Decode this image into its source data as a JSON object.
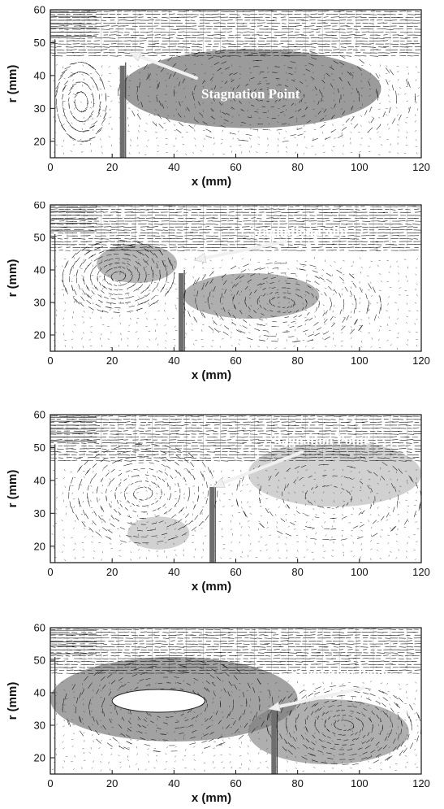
{
  "chart_data": [
    {
      "type": "vector-field",
      "xlabel": "x (mm)",
      "ylabel": "r (mm)",
      "xlim": [
        0,
        120
      ],
      "ylim": [
        15,
        60
      ],
      "xticks": [
        "0",
        "20",
        "40",
        "60",
        "80",
        "100",
        "120"
      ],
      "yticks": [
        "20",
        "30",
        "40",
        "50",
        "60"
      ],
      "annotation": "Stagnation Point",
      "stagnation_point": {
        "x": 25,
        "r": 47
      },
      "wall_x": 22.5,
      "wall_top_r": 43
    },
    {
      "type": "vector-field",
      "xlabel": "x (mm)",
      "ylabel": "r (mm)",
      "xlim": [
        0,
        120
      ],
      "ylim": [
        15,
        60
      ],
      "xticks": [
        "0",
        "20",
        "40",
        "60",
        "80",
        "100",
        "120"
      ],
      "yticks": [
        "20",
        "30",
        "40",
        "50",
        "60"
      ],
      "annotation": "Stagnation Point",
      "stagnation_point": {
        "x": 46,
        "r": 43
      },
      "wall_x": 41.5,
      "wall_top_r": 39
    },
    {
      "type": "vector-field",
      "xlabel": "x (mm)",
      "ylabel": "r (mm)",
      "xlim": [
        0,
        120
      ],
      "ylim": [
        15,
        60
      ],
      "xticks": [
        "0",
        "20",
        "40",
        "60",
        "80",
        "100",
        "120"
      ],
      "yticks": [
        "20",
        "30",
        "40",
        "50",
        "60"
      ],
      "annotation": "Stagnation Point",
      "stagnation_point": {
        "x": 52,
        "r": 38
      },
      "wall_x": 51.5,
      "wall_top_r": 38
    },
    {
      "type": "vector-field",
      "xlabel": "x (mm)",
      "ylabel": "r (mm)",
      "xlim": [
        0,
        120
      ],
      "ylim": [
        15,
        60
      ],
      "xticks": [
        "0",
        "20",
        "40",
        "60",
        "80",
        "100",
        "120"
      ],
      "yticks": [
        "20",
        "30",
        "40",
        "50",
        "60"
      ],
      "annotation": "Stagnation Point",
      "stagnation_point": {
        "x": 70,
        "r": 35
      },
      "wall_x": 71.5,
      "wall_top_r": 35
    }
  ],
  "colors": {
    "field": "#7a7a7a",
    "vector": "#1a1a1a",
    "arrow": "#f0f0f0",
    "background": "#ffffff"
  }
}
